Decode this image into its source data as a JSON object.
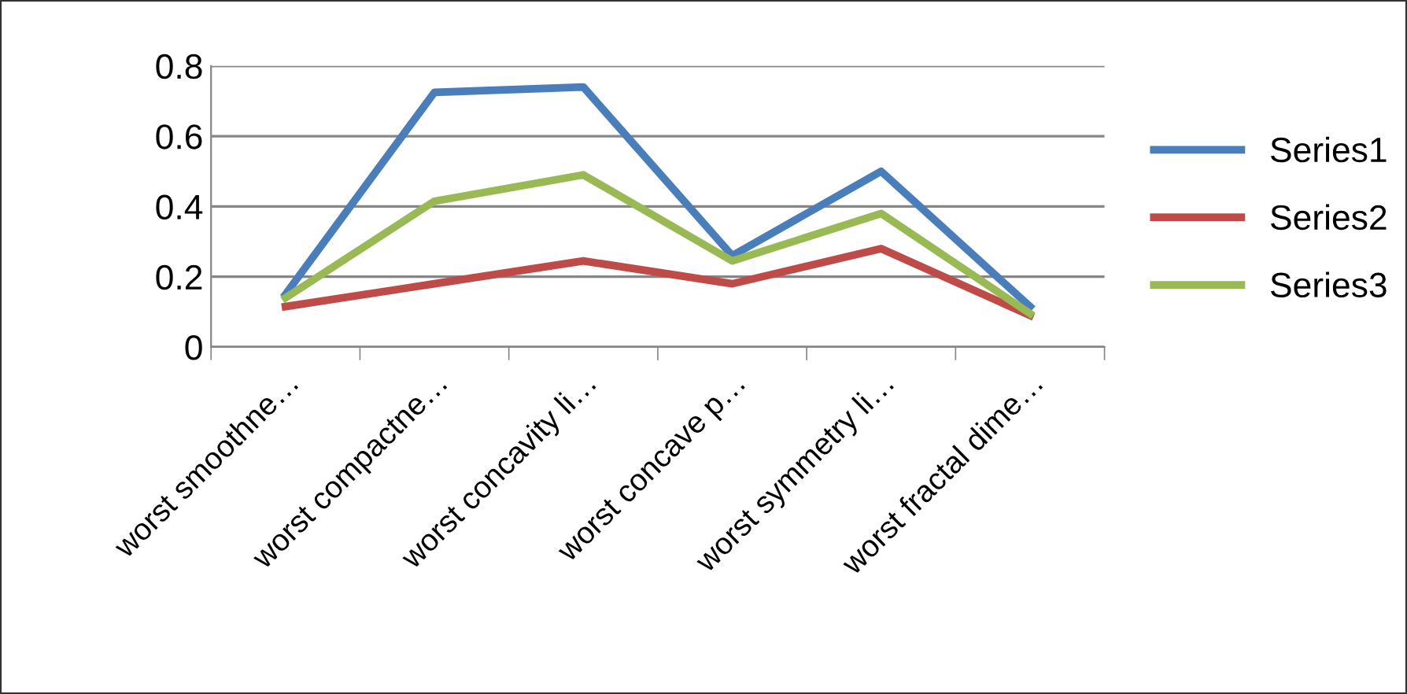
{
  "chart_data": {
    "type": "line",
    "categories": [
      "worst smoothne…",
      "worst compactne…",
      "worst concavity li…",
      "worst concave p…",
      "worst symmetry li…",
      "worst fractal dime…"
    ],
    "series": [
      {
        "name": "Series1",
        "color": "#4a7ebb",
        "values": [
          0.15,
          0.725,
          0.74,
          0.26,
          0.5,
          0.115
        ]
      },
      {
        "name": "Series2",
        "color": "#be4b48",
        "values": [
          0.115,
          0.18,
          0.245,
          0.18,
          0.28,
          0.09
        ]
      },
      {
        "name": "Series3",
        "color": "#98b954",
        "values": [
          0.14,
          0.415,
          0.49,
          0.245,
          0.38,
          0.095
        ]
      }
    ],
    "ylim": [
      0,
      0.8
    ],
    "yticks": [
      0,
      0.2,
      0.4,
      0.6,
      0.8
    ],
    "grid": "y",
    "legend": "right",
    "marker": "none",
    "line_style": "solid"
  }
}
